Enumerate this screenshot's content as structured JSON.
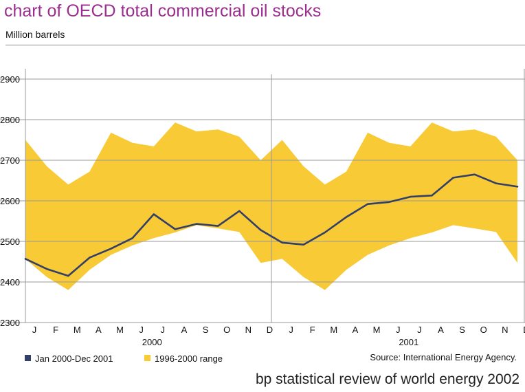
{
  "title": "chart of OECD total commercial oil stocks",
  "subtitle": "Million barrels",
  "footer": "bp statistical review of world energy 2002",
  "source": "Source: International Energy Agency.",
  "legend": {
    "line_label": "Jan 2000-Dec 2001",
    "range_label": "1996-2000 range"
  },
  "colors": {
    "line": "#333f66",
    "range": "#f8ca36",
    "grid": "#999999",
    "title": "#9b2f8f"
  },
  "chart_data": {
    "type": "line",
    "title": "chart of OECD total commercial oil stocks",
    "ylabel": "Million barrels",
    "ylim": [
      2300,
      2900
    ],
    "yticks": [
      2300,
      2400,
      2500,
      2600,
      2700,
      2800,
      2900
    ],
    "categories": [
      "J",
      "F",
      "M",
      "A",
      "M",
      "J",
      "J",
      "A",
      "S",
      "O",
      "N",
      "D",
      "J",
      "F",
      "M",
      "A",
      "M",
      "J",
      "J",
      "A",
      "S",
      "O",
      "N",
      "D"
    ],
    "year_labels": [
      "2000",
      "2001"
    ],
    "series": [
      {
        "name": "Jan 2000-Dec 2001",
        "type": "line",
        "values": [
          2457,
          2432,
          2415,
          2460,
          2482,
          2508,
          2567,
          2530,
          2543,
          2538,
          2575,
          2528,
          2497,
          2492,
          2522,
          2560,
          2592,
          2597,
          2610,
          2613,
          2657,
          2665,
          2643,
          2635
        ]
      },
      {
        "name": "1996-2000 range",
        "type": "range",
        "upper": [
          2750,
          2685,
          2640,
          2672,
          2768,
          2743,
          2734,
          2793,
          2771,
          2776,
          2758,
          2700,
          2750,
          2685,
          2640,
          2672,
          2768,
          2743,
          2734,
          2793,
          2771,
          2776,
          2758,
          2700
        ],
        "lower": [
          2457,
          2412,
          2380,
          2430,
          2467,
          2490,
          2508,
          2522,
          2540,
          2532,
          2523,
          2447,
          2457,
          2412,
          2380,
          2430,
          2467,
          2490,
          2508,
          2522,
          2540,
          2532,
          2523,
          2447
        ]
      }
    ]
  }
}
